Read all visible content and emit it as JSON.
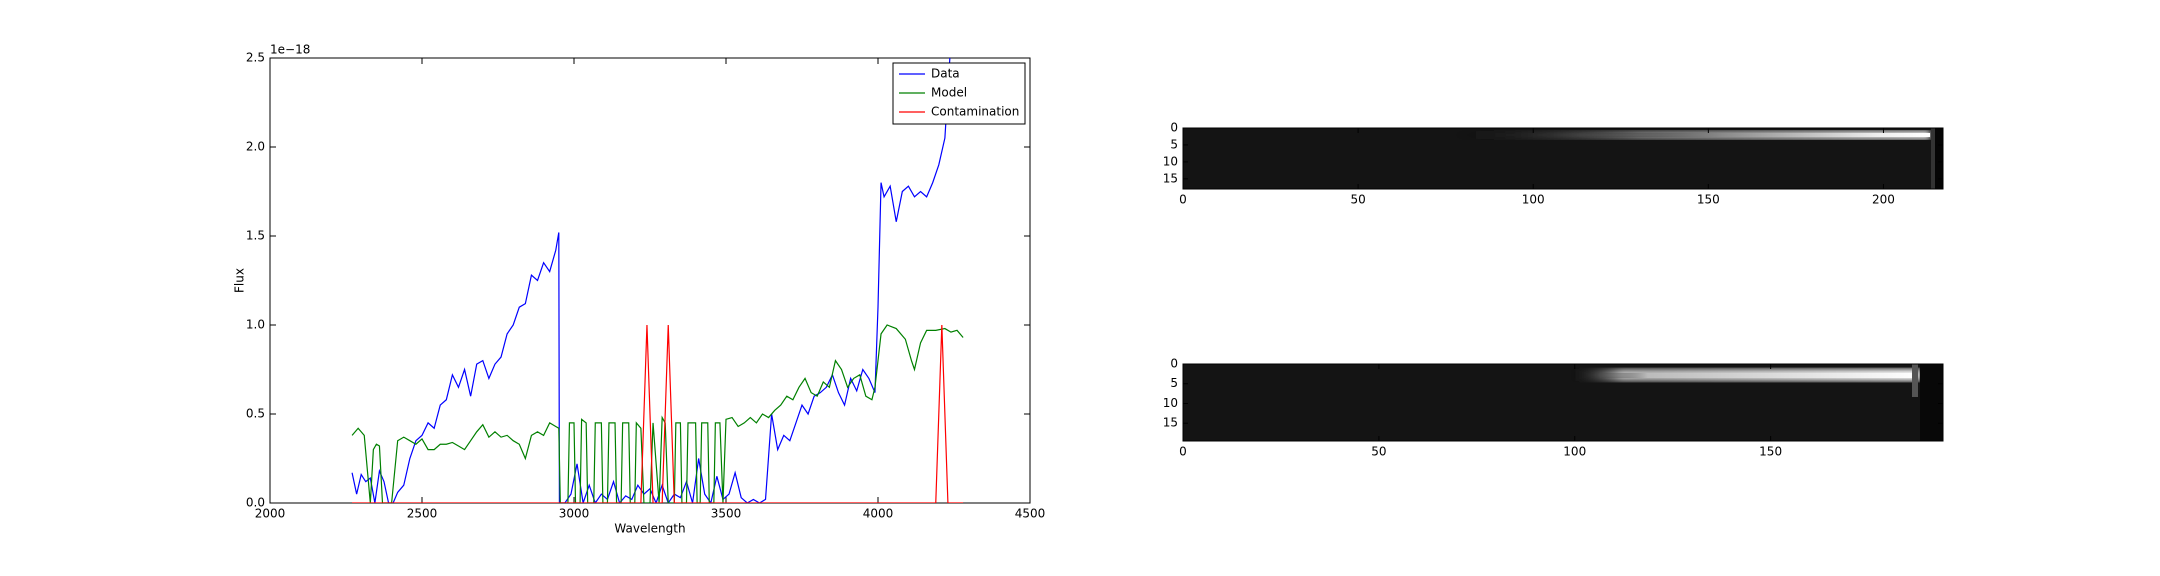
{
  "chart_data": [
    {
      "type": "line",
      "offset_text": "1e−18",
      "xlabel": "Wavelength",
      "ylabel": "Flux",
      "xlim": [
        2000,
        4500
      ],
      "xticks": [
        2000,
        2500,
        3000,
        3500,
        4000,
        4500
      ],
      "ylim": [
        0,
        2.5
      ],
      "yticks": [
        {
          "value": 0,
          "label": "0.0"
        },
        {
          "value": 0.5,
          "label": "0.5"
        },
        {
          "value": 1,
          "label": "1.0"
        },
        {
          "value": 1.5,
          "label": "1.5"
        },
        {
          "value": 2,
          "label": "2.0"
        },
        {
          "value": 2.5,
          "label": "2.5"
        }
      ],
      "legend": "upper right",
      "series": [
        {
          "name": "Data",
          "color": "#0000ff",
          "x": [
            2270,
            2285,
            2300,
            2315,
            2330,
            2345,
            2360,
            2375,
            2390,
            2405,
            2420,
            2440,
            2460,
            2480,
            2500,
            2520,
            2540,
            2560,
            2580,
            2600,
            2620,
            2640,
            2660,
            2680,
            2700,
            2720,
            2740,
            2760,
            2780,
            2800,
            2820,
            2840,
            2860,
            2880,
            2900,
            2920,
            2940,
            2950,
            2952,
            2970,
            2990,
            3010,
            3030,
            3050,
            3070,
            3090,
            3110,
            3130,
            3150,
            3170,
            3190,
            3210,
            3230,
            3250,
            3270,
            3290,
            3310,
            3330,
            3350,
            3370,
            3390,
            3410,
            3430,
            3450,
            3470,
            3490,
            3510,
            3530,
            3550,
            3570,
            3590,
            3610,
            3630,
            3650,
            3670,
            3690,
            3710,
            3730,
            3750,
            3770,
            3790,
            3810,
            3830,
            3850,
            3870,
            3890,
            3910,
            3930,
            3950,
            3970,
            3990,
            4000,
            4010,
            4020,
            4040,
            4060,
            4080,
            4100,
            4120,
            4140,
            4160,
            4180,
            4200,
            4220,
            4240
          ],
          "values": [
            0.17,
            0.05,
            0.16,
            0.12,
            0.14,
            0.0,
            0.18,
            0.12,
            0.0,
            0.0,
            0.06,
            0.1,
            0.25,
            0.35,
            0.38,
            0.45,
            0.42,
            0.55,
            0.58,
            0.72,
            0.65,
            0.75,
            0.6,
            0.78,
            0.8,
            0.7,
            0.78,
            0.82,
            0.95,
            1.0,
            1.1,
            1.12,
            1.28,
            1.25,
            1.35,
            1.3,
            1.42,
            1.52,
            0.0,
            0.0,
            0.05,
            0.22,
            0.0,
            0.1,
            0.0,
            0.05,
            0.02,
            0.12,
            0.0,
            0.04,
            0.02,
            0.1,
            0.05,
            0.08,
            0.0,
            0.1,
            0.0,
            0.05,
            0.03,
            0.12,
            0.0,
            0.25,
            0.05,
            0.0,
            0.15,
            0.02,
            0.05,
            0.17,
            0.03,
            0.0,
            0.02,
            0.0,
            0.02,
            0.5,
            0.3,
            0.38,
            0.35,
            0.45,
            0.55,
            0.5,
            0.6,
            0.62,
            0.65,
            0.72,
            0.62,
            0.55,
            0.7,
            0.63,
            0.75,
            0.7,
            0.62,
            1.1,
            1.8,
            1.72,
            1.78,
            1.58,
            1.75,
            1.78,
            1.72,
            1.75,
            1.72,
            1.8,
            1.9,
            2.05,
            2.6
          ]
        },
        {
          "name": "Model",
          "color": "#008000",
          "x": [
            2270,
            2290,
            2310,
            2330,
            2340,
            2350,
            2360,
            2370,
            2390,
            2400,
            2420,
            2440,
            2460,
            2480,
            2500,
            2520,
            2540,
            2560,
            2580,
            2600,
            2620,
            2640,
            2660,
            2680,
            2700,
            2720,
            2740,
            2760,
            2780,
            2800,
            2820,
            2840,
            2860,
            2880,
            2900,
            2920,
            2940,
            2950,
            2955,
            2980,
            2985,
            3000,
            3005,
            3020,
            3025,
            3040,
            3045,
            3065,
            3070,
            3090,
            3095,
            3110,
            3115,
            3135,
            3140,
            3155,
            3160,
            3180,
            3185,
            3200,
            3205,
            3220,
            3230,
            3250,
            3260,
            3280,
            3290,
            3300,
            3310,
            3330,
            3335,
            3350,
            3355,
            3370,
            3375,
            3400,
            3405,
            3415,
            3420,
            3440,
            3445,
            3460,
            3465,
            3480,
            3490,
            3500,
            3520,
            3540,
            3560,
            3580,
            3600,
            3620,
            3640,
            3660,
            3680,
            3700,
            3720,
            3740,
            3760,
            3780,
            3800,
            3820,
            3840,
            3860,
            3880,
            3900,
            3920,
            3940,
            3960,
            3980,
            3990,
            4000,
            4010,
            4030,
            4060,
            4090,
            4110,
            4120,
            4140,
            4160,
            4190,
            4220,
            4240,
            4260,
            4280
          ],
          "values": [
            0.38,
            0.42,
            0.38,
            0.0,
            0.3,
            0.33,
            0.32,
            0.0,
            0.0,
            0.0,
            0.35,
            0.37,
            0.35,
            0.33,
            0.36,
            0.3,
            0.3,
            0.33,
            0.33,
            0.34,
            0.32,
            0.3,
            0.35,
            0.4,
            0.44,
            0.37,
            0.4,
            0.37,
            0.38,
            0.35,
            0.33,
            0.25,
            0.38,
            0.4,
            0.38,
            0.45,
            0.43,
            0.42,
            0.0,
            0.0,
            0.45,
            0.45,
            0.0,
            0.0,
            0.47,
            0.45,
            0.0,
            0.0,
            0.45,
            0.45,
            0.0,
            0.0,
            0.45,
            0.45,
            0.0,
            0.0,
            0.45,
            0.45,
            0.0,
            0.0,
            0.45,
            0.42,
            0.0,
            0.0,
            0.45,
            0.0,
            0.48,
            0.45,
            0.0,
            0.0,
            0.45,
            0.45,
            0.0,
            0.0,
            0.45,
            0.45,
            0.0,
            0.0,
            0.45,
            0.45,
            0.0,
            0.0,
            0.45,
            0.45,
            0.0,
            0.47,
            0.48,
            0.43,
            0.45,
            0.48,
            0.45,
            0.5,
            0.48,
            0.52,
            0.55,
            0.6,
            0.58,
            0.65,
            0.7,
            0.62,
            0.6,
            0.68,
            0.65,
            0.8,
            0.75,
            0.65,
            0.7,
            0.72,
            0.6,
            0.58,
            0.65,
            0.8,
            0.95,
            1.0,
            0.98,
            0.92,
            0.8,
            0.75,
            0.9,
            0.97,
            0.97,
            0.98,
            0.96,
            0.97,
            0.93
          ]
        },
        {
          "name": "Contamination",
          "color": "#ff0000",
          "x": [
            2270,
            3220,
            3240,
            3260,
            3290,
            3310,
            3330,
            4190,
            4210,
            4230,
            4280
          ],
          "values": [
            0,
            0,
            1.0,
            0,
            0,
            1.0,
            0,
            0,
            1.0,
            0,
            0
          ]
        }
      ]
    },
    {
      "type": "image",
      "xlim": [
        0,
        217
      ],
      "xticks": [
        0,
        50,
        100,
        150,
        200
      ],
      "ylim": [
        18,
        0
      ],
      "yticks": [
        0,
        5,
        10,
        15
      ]
    },
    {
      "type": "image",
      "xlim": [
        0,
        194
      ],
      "xticks": [
        0,
        50,
        100,
        150
      ],
      "ylim": [
        19.5,
        0
      ],
      "yticks": [
        0,
        5,
        10,
        15
      ]
    }
  ]
}
